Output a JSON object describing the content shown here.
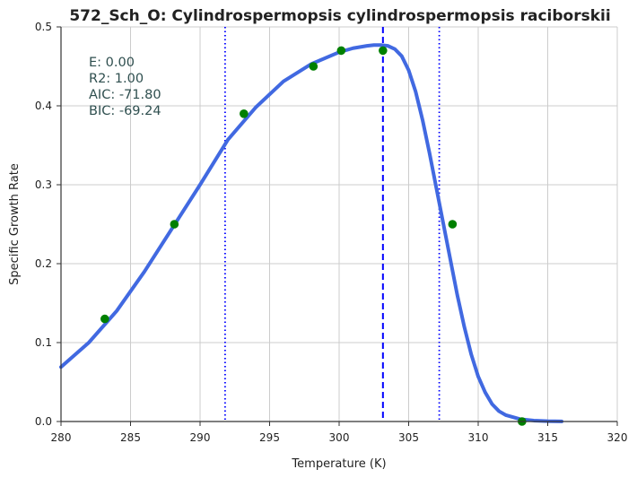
{
  "chart_data": {
    "type": "line",
    "title": "572_Sch_O: Cylindrospermopsis cylindrospermopsis raciborskii",
    "xlabel": "Temperature (K)",
    "ylabel": "Specific Growth Rate",
    "xlim": [
      280,
      320
    ],
    "ylim": [
      0,
      0.5
    ],
    "xticks": [
      "280",
      "285",
      "290",
      "295",
      "300",
      "305",
      "310",
      "315",
      "320"
    ],
    "yticks": [
      "0.0",
      "0.1",
      "0.2",
      "0.3",
      "0.4",
      "0.5"
    ],
    "grid": true,
    "annotations": [
      "E:  0.00",
      "R2:  1.00",
      "AIC: -71.80",
      "BIC: -69.24"
    ],
    "series": [
      {
        "kind": "fitted-curve",
        "color": "#4169e1",
        "x": [
          280,
          282,
          284,
          286,
          288,
          290,
          292,
          294,
          296,
          298,
          300,
          301,
          302,
          302.5,
          303,
          303.5,
          304,
          304.5,
          305,
          305.5,
          306,
          306.5,
          307,
          307.5,
          308,
          308.5,
          309,
          309.5,
          310,
          310.5,
          311,
          311.5,
          312,
          313,
          314,
          315,
          316
        ],
        "y": [
          0.069,
          0.1,
          0.14,
          0.19,
          0.245,
          0.3,
          0.357,
          0.398,
          0.431,
          0.453,
          0.468,
          0.473,
          0.476,
          0.477,
          0.477,
          0.476,
          0.472,
          0.463,
          0.445,
          0.418,
          0.382,
          0.34,
          0.295,
          0.25,
          0.205,
          0.16,
          0.12,
          0.085,
          0.057,
          0.037,
          0.022,
          0.013,
          0.008,
          0.003,
          0.0012,
          0.0004,
          0.0001
        ]
      },
      {
        "kind": "observed",
        "color": "#008000",
        "x": [
          283.15,
          288.15,
          293.15,
          298.15,
          300.15,
          303.15,
          308.15,
          313.15
        ],
        "y": [
          0.13,
          0.25,
          0.39,
          0.45,
          0.47,
          0.47,
          0.25,
          0.0
        ]
      }
    ],
    "vlines": [
      {
        "x": 291.8,
        "style": "dotted",
        "color": "#0000ff"
      },
      {
        "x": 303.15,
        "style": "dashed",
        "color": "#0000ff"
      },
      {
        "x": 307.2,
        "style": "dotted",
        "color": "#0000ff"
      }
    ]
  }
}
